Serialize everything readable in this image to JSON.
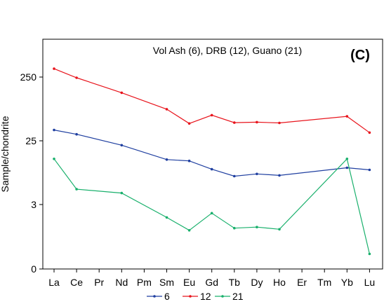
{
  "chart_data": {
    "type": "line",
    "title": "Vol Ash (6), DRB (12), Guano (21)",
    "panel_label": "(C)",
    "ylabel": "Sample/chondrite",
    "xlabel": "",
    "categories": [
      "La",
      "Ce",
      "Pr",
      "Nd",
      "Pm",
      "Sm",
      "Eu",
      "Gd",
      "Tb",
      "Dy",
      "Ho",
      "Er",
      "Tm",
      "Yb",
      "Lu"
    ],
    "y_ticks": [
      "0",
      "3",
      "25",
      "250"
    ],
    "y_scale": "nonlinear (tick labels 0, 3, 25, 250 equally spaced)",
    "grid": false,
    "legend_position": "bottom",
    "series": [
      {
        "name": "6",
        "color": "#1f3fa0",
        "values": [
          36.9,
          31.6,
          null,
          21.6,
          null,
          13.4,
          12.8,
          9.7,
          7.7,
          8.3,
          7.9,
          null,
          null,
          10.2,
          9.5
        ]
      },
      {
        "name": "12",
        "color": "#e8141c",
        "values": [
          338,
          244,
          null,
          142,
          null,
          78.3,
          46.7,
          63.1,
          48.1,
          49.0,
          47.7,
          null,
          null,
          60.5,
          33.6
        ]
      },
      {
        "name": "21",
        "color": "#19b06c",
        "values": [
          13.7,
          5.0,
          null,
          4.4,
          null,
          2.4,
          1.8,
          2.6,
          1.9,
          1.95,
          1.85,
          null,
          null,
          13.7,
          0.7
        ]
      }
    ]
  }
}
